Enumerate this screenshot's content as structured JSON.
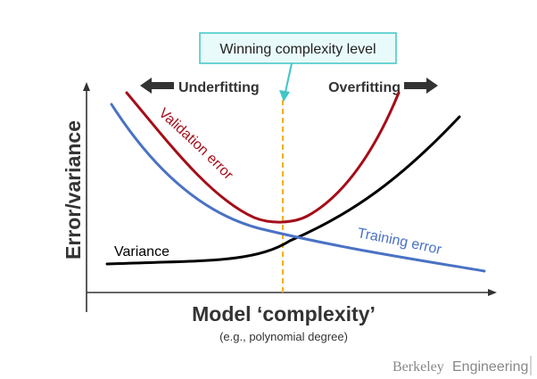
{
  "callout": {
    "text": "Winning complexity level",
    "border_color": "#3fc6c6",
    "fill_color": "#e9fafa"
  },
  "regions": {
    "left": "Underfitting",
    "right": "Overfitting"
  },
  "axes": {
    "ylabel": "Error/variance",
    "xlabel": "Model ‘complexity’",
    "xsublabel": "(e.g., polynomial degree)"
  },
  "curves": {
    "validation": {
      "label": "Validation error",
      "color": "#a50d18"
    },
    "training": {
      "label": "Training error",
      "color": "#4a72c4"
    },
    "variance": {
      "label": "Variance",
      "color": "#000000"
    }
  },
  "optimum_line_color": "#f2b01e",
  "footer": {
    "brand_serif": "Berkeley",
    "brand_sans": "Engineering"
  }
}
